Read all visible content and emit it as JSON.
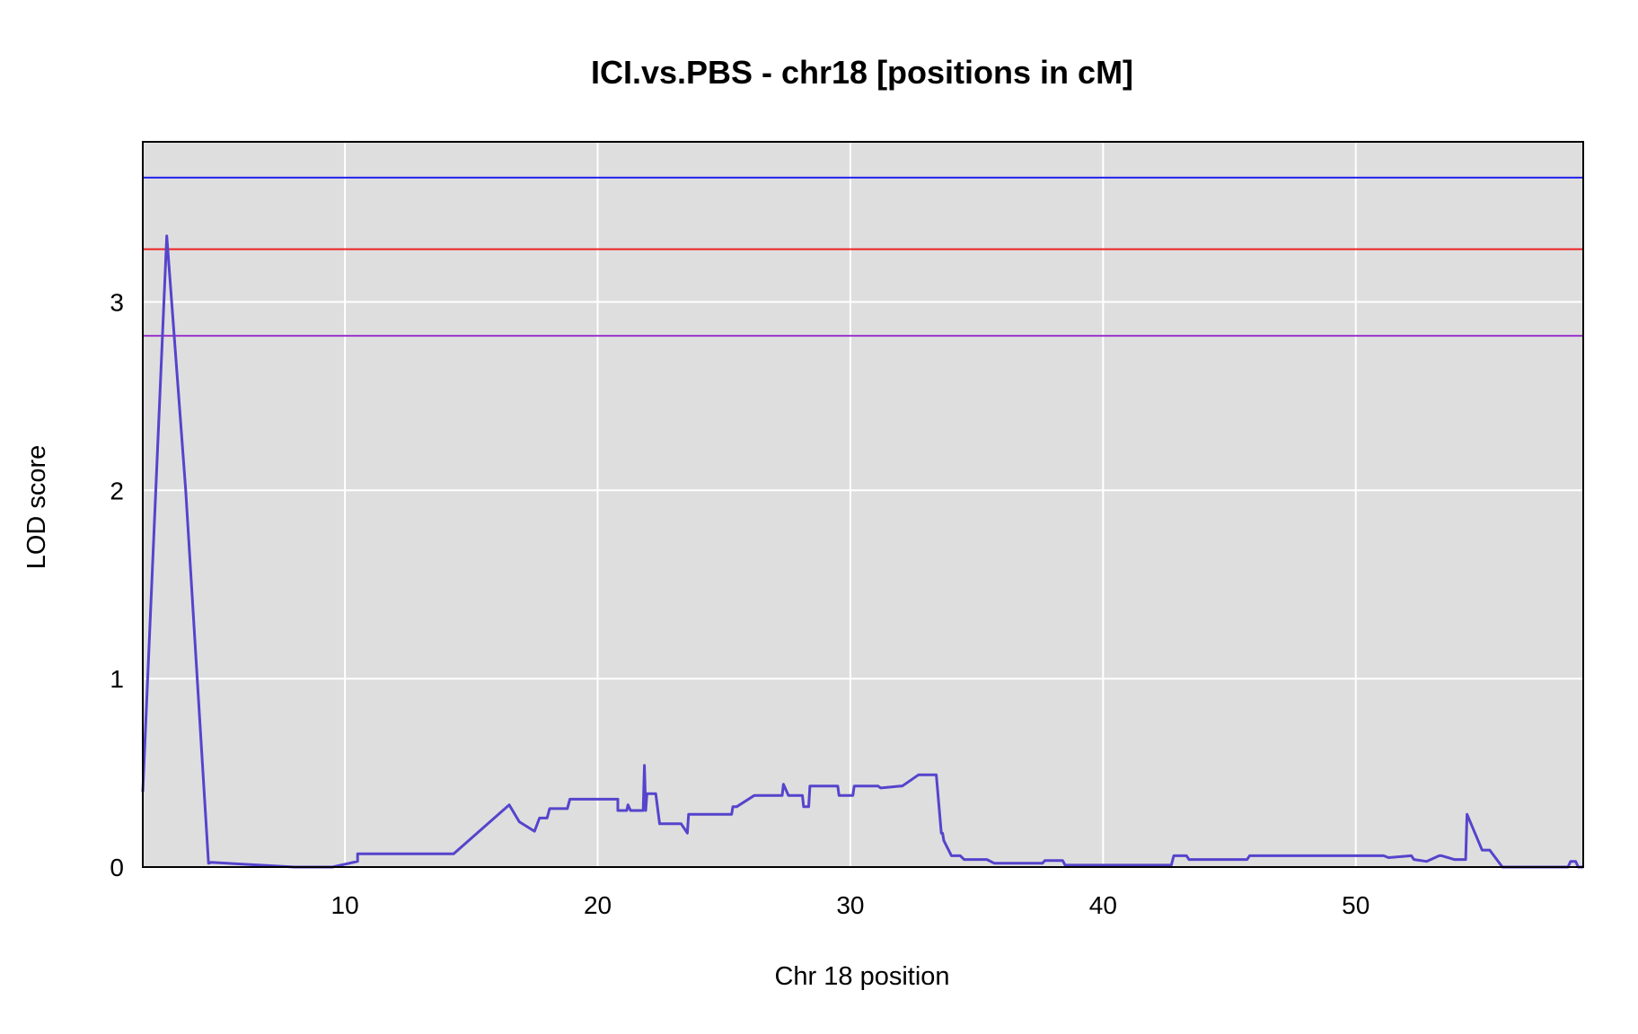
{
  "chart_data": {
    "type": "line",
    "title": "ICI.vs.PBS - chr18 [positions in cM]",
    "xlabel": "Chr 18 position",
    "ylabel": "LOD score",
    "xlim": [
      2.0,
      59.0
    ],
    "ylim": [
      0,
      3.85
    ],
    "x_ticks": [
      10,
      20,
      30,
      40,
      50
    ],
    "y_ticks": [
      0,
      1,
      2,
      3
    ],
    "grid": true,
    "background": "#dedede",
    "thresholds": [
      {
        "value": 3.66,
        "color": "#2222ee"
      },
      {
        "value": 3.28,
        "color": "#ee2222"
      },
      {
        "value": 2.82,
        "color": "#9933cc"
      }
    ],
    "series": [
      {
        "color": "#5544cc",
        "x": [
          2.0,
          2.95,
          3.7,
          4.6,
          4.7,
          8.0,
          9.5,
          10.5,
          10.5,
          12.0,
          14.3,
          16.5,
          16.9,
          17.5,
          17.7,
          18.0,
          18.1,
          18.8,
          18.9,
          20.8,
          20.8,
          21.15,
          21.2,
          21.3,
          21.8,
          21.85,
          21.9,
          21.95,
          22.3,
          22.45,
          23.3,
          23.55,
          23.6,
          25.3,
          25.35,
          25.5,
          26.2,
          27.3,
          27.35,
          27.55,
          28.1,
          28.15,
          28.35,
          28.4,
          29.5,
          29.55,
          30.1,
          30.15,
          31.1,
          31.2,
          32.0,
          32.05,
          32.7,
          33.4,
          33.6,
          33.65,
          33.7,
          34.0,
          34.35,
          34.5,
          35.4,
          35.7,
          37.6,
          37.7,
          38.4,
          38.5,
          42.7,
          42.8,
          43.3,
          43.4,
          45.7,
          45.8,
          50.5,
          50.6,
          51.1,
          51.3,
          52.2,
          52.3,
          52.8,
          53.3,
          53.4,
          53.9,
          54.05,
          54.35,
          54.4,
          55.0,
          55.3,
          55.8,
          58.4,
          58.5,
          58.7,
          58.8,
          59.0
        ],
        "y": [
          0.4,
          3.35,
          2.0,
          0.02,
          0.025,
          0.0,
          0.0,
          0.03,
          0.07,
          0.07,
          0.07,
          0.33,
          0.24,
          0.19,
          0.26,
          0.26,
          0.31,
          0.31,
          0.36,
          0.36,
          0.3,
          0.3,
          0.33,
          0.3,
          0.3,
          0.54,
          0.3,
          0.39,
          0.39,
          0.23,
          0.23,
          0.18,
          0.28,
          0.28,
          0.32,
          0.32,
          0.38,
          0.38,
          0.44,
          0.38,
          0.38,
          0.32,
          0.32,
          0.43,
          0.43,
          0.38,
          0.38,
          0.43,
          0.43,
          0.42,
          0.43,
          0.43,
          0.49,
          0.49,
          0.18,
          0.18,
          0.14,
          0.06,
          0.06,
          0.04,
          0.04,
          0.02,
          0.02,
          0.035,
          0.035,
          0.01,
          0.01,
          0.06,
          0.06,
          0.04,
          0.04,
          0.06,
          0.06,
          0.06,
          0.06,
          0.05,
          0.06,
          0.04,
          0.03,
          0.06,
          0.06,
          0.04,
          0.04,
          0.04,
          0.28,
          0.09,
          0.09,
          0.0,
          0.0,
          0.03,
          0.03,
          0.0,
          0.0
        ]
      }
    ]
  }
}
